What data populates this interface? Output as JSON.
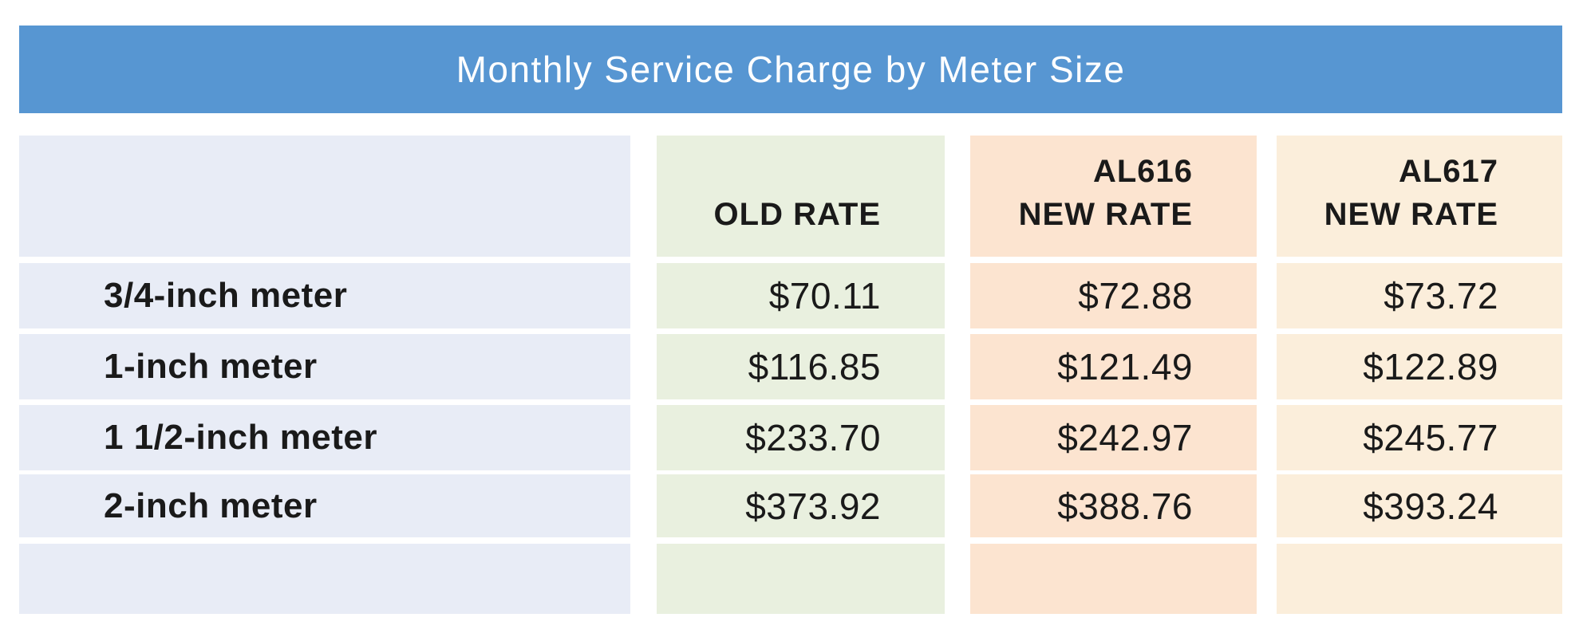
{
  "title": "Monthly Service Charge by Meter Size",
  "colors": {
    "title_bar": "#5796d2",
    "title_text": "#ffffff",
    "label_column": "#e8ecf6",
    "old_rate_column": "#e9f0df",
    "al616_column": "#fce4d0",
    "al617_column": "#fbeedb",
    "body_text": "#1a1a1a"
  },
  "table": {
    "headers": [
      {
        "line1": "",
        "line2": ""
      },
      {
        "line1": "",
        "line2": "OLD RATE"
      },
      {
        "line1": "AL616",
        "line2": "NEW RATE"
      },
      {
        "line1": "AL617",
        "line2": "NEW RATE"
      }
    ],
    "rows": [
      {
        "label": "3/4-inch meter",
        "values": [
          "$70.11",
          "$72.88",
          "$73.72"
        ]
      },
      {
        "label": "1-inch meter",
        "values": [
          "$116.85",
          "$121.49",
          "$122.89"
        ]
      },
      {
        "label": "1 1/2-inch meter",
        "values": [
          "$233.70",
          "$242.97",
          "$245.77"
        ]
      },
      {
        "label": "2-inch meter",
        "values": [
          "$373.92",
          "$388.76",
          "$393.24"
        ]
      },
      {
        "label": "",
        "values": [
          "",
          "",
          ""
        ]
      }
    ]
  },
  "chart_data": {
    "type": "table",
    "title": "Monthly Service Charge by Meter Size",
    "columns": [
      "",
      "OLD RATE",
      "AL616 NEW RATE",
      "AL617 NEW RATE"
    ],
    "rows": [
      [
        "3/4-inch meter",
        70.11,
        72.88,
        73.72
      ],
      [
        "1-inch meter",
        116.85,
        121.49,
        122.89
      ],
      [
        "1 1/2-inch meter",
        233.7,
        242.97,
        245.77
      ],
      [
        "2-inch meter",
        373.92,
        388.76,
        393.24
      ]
    ],
    "currency": "$"
  }
}
